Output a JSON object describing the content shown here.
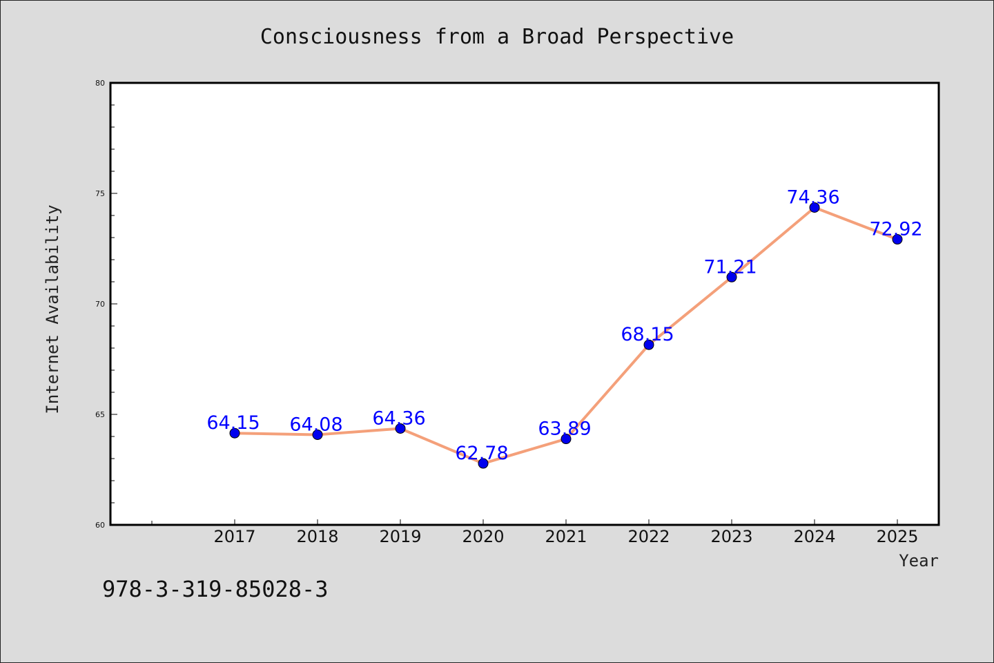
{
  "footer": {
    "code": "978-3-319-85028-3"
  },
  "colors": {
    "background": "#dcdcdc",
    "plot_background": "#ffffff",
    "line": "#f4a07a",
    "marker": "#0000ee",
    "data_label": "#0000ff"
  },
  "chart_data": {
    "type": "line",
    "title": "Consciousness from a Broad Perspective",
    "xlabel": "Year",
    "ylabel": "Internet Availability",
    "categories": [
      "2017",
      "2018",
      "2019",
      "2020",
      "2021",
      "2022",
      "2023",
      "2024",
      "2025"
    ],
    "series": [
      {
        "values": [
          64.15,
          64.08,
          64.36,
          62.78,
          63.89,
          68.15,
          71.21,
          74.36,
          72.92
        ],
        "labels": [
          "64.15",
          "64.08",
          "64.36",
          "62.78",
          "63.89",
          "68.15",
          "71.21",
          "74.36",
          "72.92"
        ]
      }
    ],
    "ylim": [
      60,
      80
    ],
    "yticks": [
      60,
      65,
      70,
      75,
      80
    ],
    "ytick_labels": [
      "60",
      "65",
      "70",
      "75",
      "80"
    ],
    "grid": false,
    "legend": "none"
  }
}
